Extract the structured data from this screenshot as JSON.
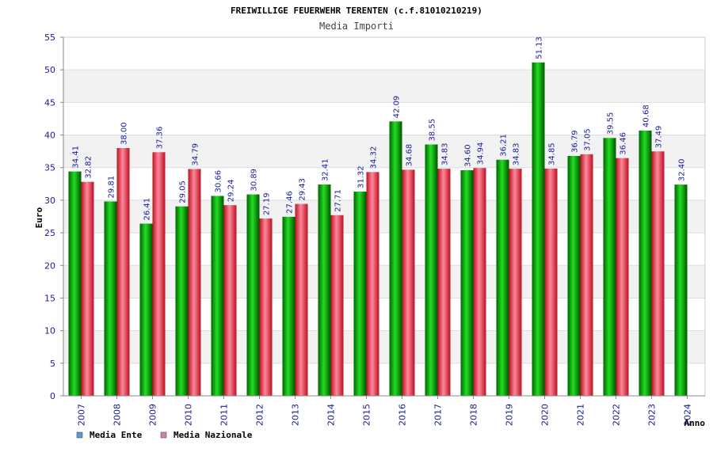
{
  "chart_data": {
    "type": "bar",
    "title": "FREIWILLIGE FEUERWEHR TERENTEN (c.f.81010210219)",
    "subtitle": "Media Importi",
    "xlabel": "Anno",
    "ylabel": "Euro",
    "ylim": [
      0,
      55
    ],
    "yticks": [
      "0",
      "5",
      "10",
      "15",
      "20",
      "25",
      "30",
      "35",
      "40",
      "45",
      "50",
      "55"
    ],
    "grid": true,
    "legend_position": "bottom-left",
    "categories": [
      "2007",
      "2008",
      "2009",
      "2010",
      "2011",
      "2012",
      "2013",
      "2014",
      "2015",
      "2016",
      "2017",
      "2018",
      "2019",
      "2020",
      "2021",
      "2022",
      "2023",
      "2024"
    ],
    "series": [
      {
        "name": "Media Ente",
        "color": "#00aa00",
        "legend_color": "#5b9bd5",
        "values": [
          34.41,
          29.81,
          26.41,
          29.05,
          30.66,
          30.89,
          27.46,
          32.41,
          31.32,
          42.09,
          38.55,
          34.6,
          36.21,
          51.13,
          36.79,
          39.55,
          40.68,
          32.4
        ],
        "labels": [
          "34.41",
          "29.81",
          "26.41",
          "29.05",
          "30.66",
          "30.89",
          "27.46",
          "32.41",
          "31.32",
          "42.09",
          "38.55",
          "34.60",
          "36.21",
          "51.13",
          "36.79",
          "39.55",
          "40.68",
          "32.40"
        ]
      },
      {
        "name": "Media Nazionale",
        "color": "#dd2233",
        "legend_color": "#d67fb0",
        "values": [
          32.82,
          38.0,
          37.36,
          34.79,
          29.24,
          27.19,
          29.43,
          27.71,
          34.32,
          34.68,
          34.83,
          34.94,
          34.83,
          34.85,
          37.05,
          36.46,
          37.49,
          null
        ],
        "labels": [
          "32.82",
          "38.00",
          "37.36",
          "34.79",
          "29.24",
          "27.19",
          "29.43",
          "27.71",
          "34.32",
          "34.68",
          "34.83",
          "34.94",
          "34.83",
          "34.85",
          "37.05",
          "36.46",
          "37.49",
          null
        ]
      }
    ]
  }
}
